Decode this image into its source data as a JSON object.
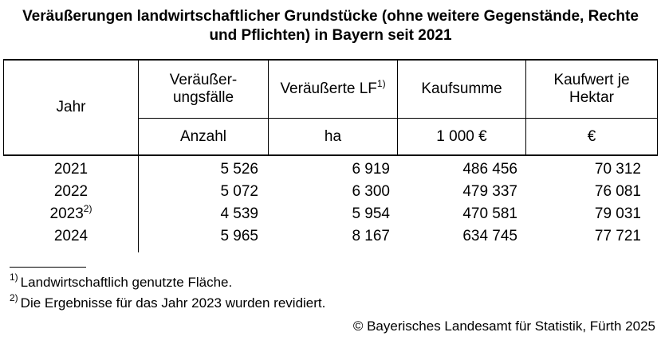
{
  "title": {
    "line1": "Veräußerungen landwirtschaftlicher Grundstücke (ohne weitere Gegenstände, Rechte",
    "line2": "und Pflichten) in Bayern seit 2021"
  },
  "table": {
    "columns": [
      {
        "label": "Jahr",
        "unit": ""
      },
      {
        "label_line1": "Veräußer-",
        "label_line2": "ungsfälle",
        "unit": "Anzahl"
      },
      {
        "label": "Veräußerte LF",
        "label_sup": "1)",
        "unit": "ha"
      },
      {
        "label": "Kaufsumme",
        "unit": "1 000 €"
      },
      {
        "label_line1": "Kaufwert je",
        "label_line2": "Hektar",
        "unit": "€"
      }
    ],
    "rows": [
      {
        "year": "2021",
        "year_sup": "",
        "veraeusserungsfaelle": "5 526",
        "veraeusserte_lf": "6 919",
        "kaufsumme": "486 456",
        "kaufwert_je_hektar": "70 312"
      },
      {
        "year": "2022",
        "year_sup": "",
        "veraeusserungsfaelle": "5 072",
        "veraeusserte_lf": "6 300",
        "kaufsumme": "479 337",
        "kaufwert_je_hektar": "76 081"
      },
      {
        "year": "2023",
        "year_sup": "2)",
        "veraeusserungsfaelle": "4 539",
        "veraeusserte_lf": "5 954",
        "kaufsumme": "470 581",
        "kaufwert_je_hektar": "79 031"
      },
      {
        "year": "2024",
        "year_sup": "",
        "veraeusserungsfaelle": "5 965",
        "veraeusserte_lf": "8 167",
        "kaufsumme": "634 745",
        "kaufwert_je_hektar": "77 721"
      }
    ]
  },
  "footnotes": [
    {
      "sup": "1)",
      "text": "Landwirtschaftlich genutzte Fläche."
    },
    {
      "sup": "2)",
      "text": "Die Ergebnisse für das Jahr 2023 wurden revidiert."
    }
  ],
  "copyright": "© Bayerisches Landesamt für Statistik, Fürth 2025"
}
